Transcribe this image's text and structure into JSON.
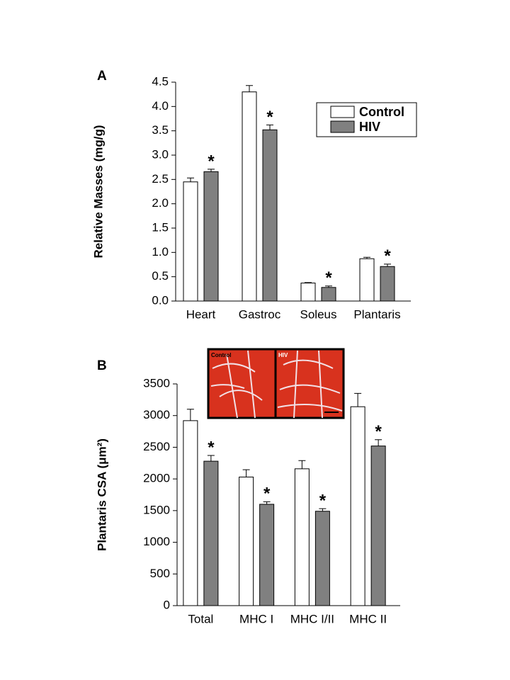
{
  "chart_data": [
    {
      "type": "bar",
      "panel_label": "A",
      "ylabel": "Relative Masses (mg/g)",
      "categories": [
        "Heart",
        "Gastroc",
        "Soleus",
        "Plantaris"
      ],
      "series": [
        {
          "name": "Control",
          "color": "#ffffff",
          "values": [
            2.45,
            4.3,
            0.37,
            0.87
          ],
          "errors": [
            0.08,
            0.13,
            0.01,
            0.03
          ]
        },
        {
          "name": "HIV",
          "color": "#808080",
          "values": [
            2.66,
            3.52,
            0.28,
            0.71
          ],
          "errors": [
            0.05,
            0.1,
            0.03,
            0.05
          ],
          "markers": [
            "*",
            "*",
            "*",
            "*"
          ]
        }
      ],
      "ylim": [
        0,
        4.5
      ],
      "yticks": [
        {
          "value": 0,
          "label": "0.0"
        },
        0.5,
        {
          "value": 1,
          "label": "1.0"
        },
        1.5,
        {
          "value": 2,
          "label": "2.0"
        },
        2.5,
        {
          "value": 3,
          "label": "3.0"
        },
        3.5,
        {
          "value": 4,
          "label": "4.0"
        },
        4.5
      ],
      "legend": "top-right"
    },
    {
      "type": "bar",
      "panel_label": "B",
      "ylabel": "Plantaris CSA (μm²)",
      "categories": [
        "Total",
        "MHC I",
        "MHC I/II",
        "MHC II"
      ],
      "series": [
        {
          "name": "Control",
          "color": "#ffffff",
          "values": [
            2920,
            2030,
            2160,
            3140
          ],
          "errors": [
            180,
            115,
            130,
            210
          ]
        },
        {
          "name": "HIV",
          "color": "#808080",
          "values": [
            2280,
            1600,
            1490,
            2520
          ],
          "errors": [
            90,
            40,
            40,
            100
          ],
          "markers": [
            "*",
            "*",
            "*",
            "*"
          ]
        }
      ],
      "ylim": [
        0,
        3500
      ],
      "yticks": [
        0,
        500,
        1000,
        1500,
        2000,
        2500,
        3000,
        3500
      ],
      "legend": "none",
      "inset_labels": [
        "Control",
        "HIV"
      ]
    }
  ]
}
